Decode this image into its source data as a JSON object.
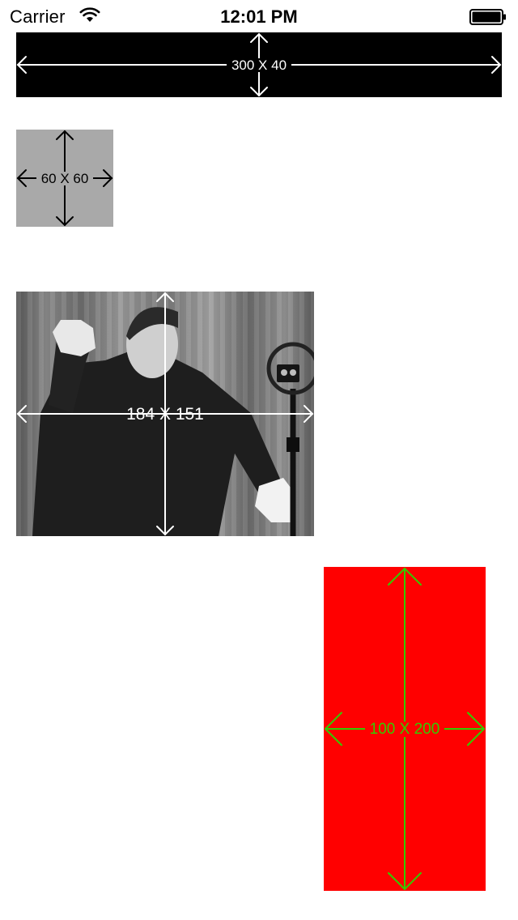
{
  "status_bar": {
    "carrier": "Carrier",
    "time": "12:01 PM",
    "wifi_icon": "wifi-icon",
    "battery_icon": "battery-icon"
  },
  "boxes": [
    {
      "label": "300 X 40",
      "color": "#000000",
      "arrow_color": "#ffffff"
    },
    {
      "label": "60 X 60",
      "color": "#a9a9a9",
      "arrow_color": "#000000"
    },
    {
      "label": "184 X 151",
      "color": "photo",
      "arrow_color": "#ffffff"
    },
    {
      "label": "100 X 200",
      "color": "#ff0000",
      "arrow_color": "#33cc00"
    }
  ]
}
